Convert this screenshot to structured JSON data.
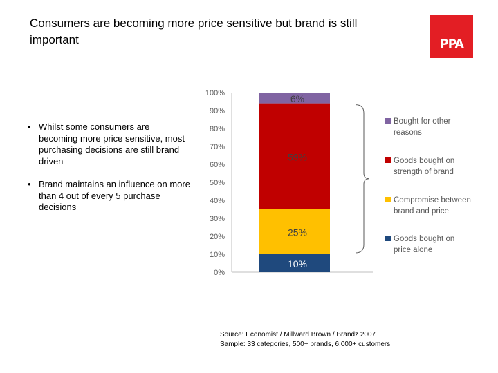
{
  "slide": {
    "title": "Consumers are becoming more price sensitive but brand is still important",
    "logo_text": "PPA",
    "bullets": [
      "Whilst some consumers are becoming more price sensitive, most purchasing decisions are still brand driven",
      "Brand maintains an influence on more than 4 out of every 5 purchase decisions"
    ],
    "source_line1": "Source: Economist / Millward Brown / Brandz 2007",
    "source_line2": "Sample: 33 categories, 500+ brands, 6,000+ customers"
  },
  "chart_data": {
    "type": "bar",
    "stacked": true,
    "categories": [
      ""
    ],
    "ylim": [
      0,
      100
    ],
    "yticks": [
      "0%",
      "10%",
      "20%",
      "30%",
      "40%",
      "50%",
      "60%",
      "70%",
      "80%",
      "90%",
      "100%"
    ],
    "series": [
      {
        "name": "Goods bought on price alone",
        "values": [
          10
        ],
        "label": "10%",
        "color": "#1f497d",
        "label_color": "#ffffff"
      },
      {
        "name": "Compromise between brand and price",
        "values": [
          25
        ],
        "label": "25%",
        "color": "#ffc000",
        "label_color": "#404040"
      },
      {
        "name": "Goods bought on strength of brand",
        "values": [
          59
        ],
        "label": "59%",
        "color": "#c00000",
        "label_color": "#404040"
      },
      {
        "name": "Bought for other reasons",
        "values": [
          6
        ],
        "label": "6%",
        "color": "#8064a2",
        "label_color": "#404040"
      }
    ],
    "legend_order": [
      3,
      2,
      1,
      0
    ],
    "legend_position": "right"
  }
}
